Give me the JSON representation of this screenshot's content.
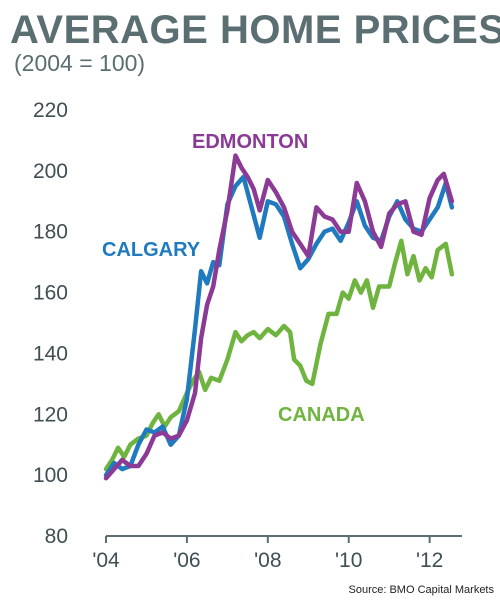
{
  "title": "AVERAGE HOME PRICES",
  "subtitle": "(2004 = 100)",
  "source": "Source: BMO Capital Markets",
  "colors": {
    "edmonton": "#8b3a96",
    "calgary": "#1f7ac0",
    "canada": "#6fb43f",
    "axis": "#5b6e72"
  },
  "chart_data": {
    "type": "line",
    "title": "AVERAGE HOME PRICES",
    "subtitle": "(2004 = 100)",
    "xlabel": "",
    "ylabel": "",
    "xlim": [
      2004,
      2012.8
    ],
    "ylim": [
      80,
      220
    ],
    "yticks": [
      80,
      100,
      120,
      140,
      160,
      180,
      200,
      220
    ],
    "xticks": [
      {
        "value": 2004,
        "label": "'04"
      },
      {
        "value": 2006,
        "label": "'06"
      },
      {
        "value": 2008,
        "label": "'08"
      },
      {
        "value": 2010,
        "label": "'10"
      },
      {
        "value": 2012,
        "label": "'12"
      }
    ],
    "grid": false,
    "series": [
      {
        "name": "EDMONTON",
        "color": "#8b3a96",
        "points": [
          [
            2004.0,
            99
          ],
          [
            2004.2,
            102
          ],
          [
            2004.4,
            105
          ],
          [
            2004.6,
            103
          ],
          [
            2004.8,
            103
          ],
          [
            2005.0,
            107
          ],
          [
            2005.2,
            113
          ],
          [
            2005.4,
            114
          ],
          [
            2005.6,
            112
          ],
          [
            2005.8,
            113
          ],
          [
            2006.0,
            118
          ],
          [
            2006.2,
            127
          ],
          [
            2006.35,
            145
          ],
          [
            2006.5,
            156
          ],
          [
            2006.65,
            162
          ],
          [
            2006.8,
            174
          ],
          [
            2007.0,
            187
          ],
          [
            2007.2,
            205
          ],
          [
            2007.35,
            201
          ],
          [
            2007.5,
            198
          ],
          [
            2007.65,
            194
          ],
          [
            2007.8,
            187
          ],
          [
            2008.0,
            197
          ],
          [
            2008.2,
            193
          ],
          [
            2008.4,
            188
          ],
          [
            2008.6,
            180
          ],
          [
            2008.8,
            176
          ],
          [
            2009.0,
            172
          ],
          [
            2009.2,
            188
          ],
          [
            2009.4,
            185
          ],
          [
            2009.6,
            184
          ],
          [
            2009.8,
            180
          ],
          [
            2010.0,
            180
          ],
          [
            2010.2,
            196
          ],
          [
            2010.4,
            190
          ],
          [
            2010.6,
            180
          ],
          [
            2010.8,
            175
          ],
          [
            2011.0,
            186
          ],
          [
            2011.2,
            189
          ],
          [
            2011.4,
            190
          ],
          [
            2011.6,
            180
          ],
          [
            2011.8,
            179
          ],
          [
            2012.0,
            191
          ],
          [
            2012.2,
            197
          ],
          [
            2012.35,
            199
          ],
          [
            2012.55,
            190
          ]
        ]
      },
      {
        "name": "CALGARY",
        "color": "#1f7ac0",
        "points": [
          [
            2004.0,
            100
          ],
          [
            2004.2,
            104
          ],
          [
            2004.4,
            102
          ],
          [
            2004.6,
            103
          ],
          [
            2004.8,
            110
          ],
          [
            2005.0,
            115
          ],
          [
            2005.2,
            114
          ],
          [
            2005.4,
            116
          ],
          [
            2005.6,
            110
          ],
          [
            2005.8,
            113
          ],
          [
            2006.0,
            125
          ],
          [
            2006.2,
            148
          ],
          [
            2006.35,
            167
          ],
          [
            2006.5,
            163
          ],
          [
            2006.65,
            170
          ],
          [
            2006.8,
            169
          ],
          [
            2007.0,
            189
          ],
          [
            2007.2,
            195
          ],
          [
            2007.4,
            198
          ],
          [
            2007.6,
            188
          ],
          [
            2007.8,
            178
          ],
          [
            2008.0,
            190
          ],
          [
            2008.2,
            189
          ],
          [
            2008.4,
            185
          ],
          [
            2008.6,
            176
          ],
          [
            2008.8,
            168
          ],
          [
            2009.0,
            171
          ],
          [
            2009.2,
            176
          ],
          [
            2009.4,
            180
          ],
          [
            2009.6,
            181
          ],
          [
            2009.8,
            177
          ],
          [
            2010.0,
            183
          ],
          [
            2010.2,
            190
          ],
          [
            2010.4,
            182
          ],
          [
            2010.6,
            178
          ],
          [
            2010.8,
            177
          ],
          [
            2011.0,
            185
          ],
          [
            2011.2,
            190
          ],
          [
            2011.4,
            184
          ],
          [
            2011.6,
            181
          ],
          [
            2011.8,
            180
          ],
          [
            2012.0,
            184
          ],
          [
            2012.2,
            188
          ],
          [
            2012.4,
            196
          ],
          [
            2012.55,
            188
          ]
        ]
      },
      {
        "name": "CANADA",
        "color": "#6fb43f",
        "points": [
          [
            2004.0,
            102
          ],
          [
            2004.15,
            105
          ],
          [
            2004.3,
            109
          ],
          [
            2004.45,
            106
          ],
          [
            2004.6,
            110
          ],
          [
            2004.8,
            112
          ],
          [
            2005.0,
            113
          ],
          [
            2005.15,
            117
          ],
          [
            2005.3,
            120
          ],
          [
            2005.45,
            116
          ],
          [
            2005.6,
            119
          ],
          [
            2005.8,
            121
          ],
          [
            2006.0,
            127
          ],
          [
            2006.15,
            131
          ],
          [
            2006.3,
            134
          ],
          [
            2006.45,
            128
          ],
          [
            2006.6,
            132
          ],
          [
            2006.8,
            131
          ],
          [
            2007.0,
            138
          ],
          [
            2007.2,
            147
          ],
          [
            2007.35,
            144
          ],
          [
            2007.5,
            146
          ],
          [
            2007.65,
            147
          ],
          [
            2007.8,
            145
          ],
          [
            2008.0,
            148
          ],
          [
            2008.2,
            146
          ],
          [
            2008.4,
            149
          ],
          [
            2008.55,
            147
          ],
          [
            2008.65,
            138
          ],
          [
            2008.8,
            136
          ],
          [
            2008.95,
            131
          ],
          [
            2009.1,
            130
          ],
          [
            2009.3,
            143
          ],
          [
            2009.5,
            153
          ],
          [
            2009.7,
            153
          ],
          [
            2009.85,
            160
          ],
          [
            2010.0,
            158
          ],
          [
            2010.15,
            164
          ],
          [
            2010.3,
            160
          ],
          [
            2010.45,
            164
          ],
          [
            2010.6,
            155
          ],
          [
            2010.75,
            162
          ],
          [
            2011.0,
            162
          ],
          [
            2011.15,
            170
          ],
          [
            2011.3,
            177
          ],
          [
            2011.45,
            166
          ],
          [
            2011.6,
            172
          ],
          [
            2011.75,
            164
          ],
          [
            2011.9,
            168
          ],
          [
            2012.05,
            165
          ],
          [
            2012.2,
            174
          ],
          [
            2012.4,
            176
          ],
          [
            2012.55,
            166
          ]
        ]
      }
    ],
    "annotations": [
      {
        "text": "EDMONTON",
        "color": "#8b3a96"
      },
      {
        "text": "CALGARY",
        "color": "#1f7ac0"
      },
      {
        "text": "CANADA",
        "color": "#6fb43f"
      }
    ]
  }
}
